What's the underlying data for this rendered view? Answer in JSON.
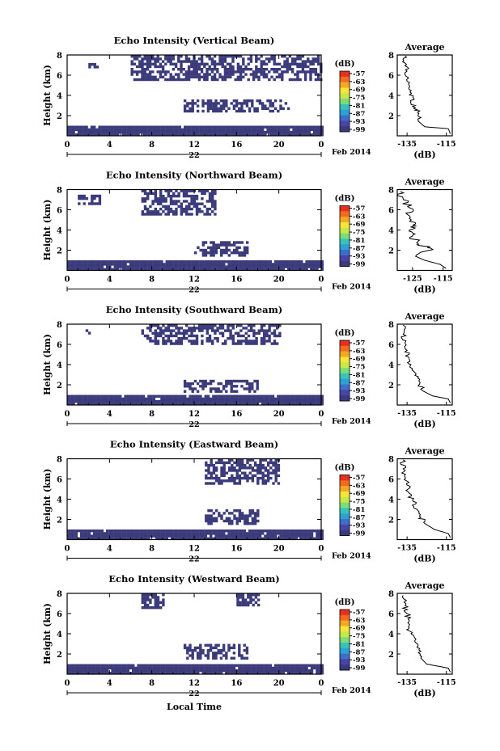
{
  "global": {
    "xlabel": "Local Time",
    "date_label": "22",
    "month_year": "Feb 2014",
    "colorbar_unit": "(dB)",
    "colorbar_ticks": [
      "-57",
      "-63",
      "-69",
      "-75",
      "-81",
      "-87",
      "-93",
      "-99"
    ],
    "colorbar_colors": [
      "#e8301e",
      "#f26b1f",
      "#f5a623",
      "#f7e53b",
      "#c8e84a",
      "#7ddc7a",
      "#38c2b8",
      "#2fa0d6",
      "#3b6fc8",
      "#4a43a8",
      "#3a3a7e"
    ],
    "data_color": "#3b3b7c",
    "x_ticks": [
      "0",
      "4",
      "8",
      "12",
      "16",
      "20",
      "0"
    ],
    "y_ticks": [
      "2",
      "4",
      "6",
      "8"
    ],
    "ylabel": "Height (km)",
    "avg_title": "Average",
    "avg_xlabel": "(dB)"
  },
  "chart_data": [
    {
      "type": "heatmap",
      "title": "Echo Intensity (Vertical Beam)",
      "xlabel": "Local Time",
      "ylabel": "Height (km)",
      "xlim": [
        0,
        24
      ],
      "ylim": [
        0,
        8
      ],
      "x_ticks": [
        "0",
        "4",
        "8",
        "12",
        "16",
        "20",
        "0"
      ],
      "y_ticks": [
        "2",
        "4",
        "6",
        "8"
      ],
      "blocks": [
        {
          "x": [
            0,
            24
          ],
          "y": [
            0.2,
            1.0
          ],
          "level": -99
        },
        {
          "x": [
            11,
            21
          ],
          "y": [
            2.5,
            3.6
          ],
          "level": -99
        },
        {
          "x": [
            6,
            24
          ],
          "y": [
            5.5,
            8.0
          ],
          "level": -99
        },
        {
          "x": [
            2,
            3
          ],
          "y": [
            6.8,
            7.2
          ],
          "level": -99
        }
      ],
      "average": {
        "title": "Average",
        "xlabel": "(dB)",
        "x_ticks": [
          "-135",
          "-115"
        ],
        "xlim": [
          -140,
          -112
        ],
        "y_ticks": [
          "2",
          "4",
          "6",
          "8"
        ],
        "ylim": [
          0,
          8
        ],
        "profile": [
          [
            -113,
            0.2
          ],
          [
            -114,
            0.7
          ],
          [
            -126,
            0.9
          ],
          [
            -129,
            1.4
          ],
          [
            -129,
            2.2
          ],
          [
            -130,
            2.6
          ],
          [
            -133,
            3.2
          ],
          [
            -132,
            3.8
          ],
          [
            -134,
            4.6
          ],
          [
            -135,
            5.4
          ],
          [
            -135,
            6.4
          ],
          [
            -136,
            7.2
          ],
          [
            -136,
            7.9
          ]
        ]
      }
    },
    {
      "type": "heatmap",
      "title": "Echo Intensity (Northward Beam)",
      "xlabel": "Local Time",
      "ylabel": "Height (km)",
      "xlim": [
        0,
        24
      ],
      "ylim": [
        0,
        8
      ],
      "x_ticks": [
        "0",
        "4",
        "8",
        "12",
        "16",
        "20",
        "0"
      ],
      "y_ticks": [
        "2",
        "4",
        "6",
        "8"
      ],
      "blocks": [
        {
          "x": [
            0,
            24
          ],
          "y": [
            0.2,
            1.0
          ],
          "level": -99
        },
        {
          "x": [
            12,
            17
          ],
          "y": [
            1.5,
            2.9
          ],
          "level": -99
        },
        {
          "x": [
            7,
            14
          ],
          "y": [
            5.6,
            8.0
          ],
          "level": -99
        },
        {
          "x": [
            1,
            3
          ],
          "y": [
            6.5,
            7.5
          ],
          "level": -99
        }
      ],
      "average": {
        "title": "Average",
        "xlabel": "(dB)",
        "x_ticks": [
          "-125",
          "-115"
        ],
        "xlim": [
          -130,
          -112
        ],
        "y_ticks": [
          "2",
          "4",
          "6",
          "8"
        ],
        "ylim": [
          0,
          8
        ],
        "profile": [
          [
            -114,
            0.2
          ],
          [
            -116,
            0.6
          ],
          [
            -121,
            1.0
          ],
          [
            -124,
            1.4
          ],
          [
            -119,
            2.2
          ],
          [
            -123,
            2.6
          ],
          [
            -125,
            3.4
          ],
          [
            -126,
            4.0
          ],
          [
            -124,
            4.6
          ],
          [
            -126,
            5.4
          ],
          [
            -126,
            6.2
          ],
          [
            -128,
            7.0
          ],
          [
            -129,
            7.8
          ]
        ]
      }
    },
    {
      "type": "heatmap",
      "title": "Echo Intensity (Southward Beam)",
      "xlabel": "Local Time",
      "ylabel": "Height (km)",
      "xlim": [
        0,
        24
      ],
      "ylim": [
        0,
        8
      ],
      "x_ticks": [
        "0",
        "4",
        "8",
        "12",
        "16",
        "20",
        "0"
      ],
      "y_ticks": [
        "2",
        "4",
        "6",
        "8"
      ],
      "blocks": [
        {
          "x": [
            0,
            24
          ],
          "y": [
            0.2,
            1.0
          ],
          "level": -99
        },
        {
          "x": [
            11,
            18
          ],
          "y": [
            1.4,
            2.5
          ],
          "level": -99
        },
        {
          "x": [
            7,
            20
          ],
          "y": [
            6.0,
            8.0
          ],
          "level": -99
        },
        {
          "x": [
            1,
            2
          ],
          "y": [
            7.0,
            7.5
          ],
          "level": -99
        }
      ],
      "average": {
        "title": "Average",
        "xlabel": "(dB)",
        "x_ticks": [
          "-135",
          "-115"
        ],
        "xlim": [
          -140,
          -112
        ],
        "y_ticks": [
          "2",
          "4",
          "6",
          "8"
        ],
        "ylim": [
          0,
          8
        ],
        "profile": [
          [
            -113,
            0.2
          ],
          [
            -114,
            0.6
          ],
          [
            -122,
            0.9
          ],
          [
            -127,
            1.4
          ],
          [
            -129,
            2.4
          ],
          [
            -131,
            3.2
          ],
          [
            -133,
            4.0
          ],
          [
            -134,
            4.6
          ],
          [
            -135,
            5.4
          ],
          [
            -136,
            6.2
          ],
          [
            -137,
            7.0
          ],
          [
            -137,
            7.9
          ]
        ]
      }
    },
    {
      "type": "heatmap",
      "title": "Echo Intensity (Eastward Beam)",
      "xlabel": "Local Time",
      "ylabel": "Height (km)",
      "xlim": [
        0,
        24
      ],
      "ylim": [
        0,
        8
      ],
      "x_ticks": [
        "0",
        "4",
        "8",
        "12",
        "16",
        "20",
        "0"
      ],
      "y_ticks": [
        "2",
        "4",
        "6",
        "8"
      ],
      "blocks": [
        {
          "x": [
            0,
            24
          ],
          "y": [
            0.2,
            1.0
          ],
          "level": -99
        },
        {
          "x": [
            13,
            18
          ],
          "y": [
            1.7,
            3.0
          ],
          "level": -99
        },
        {
          "x": [
            13,
            20
          ],
          "y": [
            5.5,
            8.0
          ],
          "level": -99
        }
      ],
      "average": {
        "title": "Average",
        "xlabel": "(dB)",
        "x_ticks": [
          "-135",
          "-115"
        ],
        "xlim": [
          -140,
          -112
        ],
        "y_ticks": [
          "2",
          "4",
          "6",
          "8"
        ],
        "ylim": [
          0,
          8
        ],
        "profile": [
          [
            -113,
            0.2
          ],
          [
            -114,
            0.6
          ],
          [
            -121,
            1.0
          ],
          [
            -126,
            1.6
          ],
          [
            -128,
            2.2
          ],
          [
            -130,
            3.0
          ],
          [
            -132,
            3.8
          ],
          [
            -134,
            4.6
          ],
          [
            -135,
            5.4
          ],
          [
            -136,
            6.2
          ],
          [
            -137,
            7.0
          ],
          [
            -137,
            7.9
          ]
        ]
      }
    },
    {
      "type": "heatmap",
      "title": "Echo Intensity (Westward Beam)",
      "xlabel": "Local Time",
      "ylabel": "Height (km)",
      "xlim": [
        0,
        24
      ],
      "ylim": [
        0,
        8
      ],
      "x_ticks": [
        "0",
        "4",
        "8",
        "12",
        "16",
        "20",
        "0"
      ],
      "y_ticks": [
        "2",
        "4",
        "6",
        "8"
      ],
      "blocks": [
        {
          "x": [
            0,
            24
          ],
          "y": [
            0.2,
            1.0
          ],
          "level": -99
        },
        {
          "x": [
            11,
            17
          ],
          "y": [
            1.7,
            3.0
          ],
          "level": -99
        },
        {
          "x": [
            16,
            18
          ],
          "y": [
            6.8,
            8.0
          ],
          "level": -99
        },
        {
          "x": [
            7,
            9
          ],
          "y": [
            6.5,
            8.0
          ],
          "level": -99
        }
      ],
      "average": {
        "title": "Average",
        "xlabel": "(dB)",
        "x_ticks": [
          "-135",
          "-115"
        ],
        "xlim": [
          -140,
          -112
        ],
        "y_ticks": [
          "2",
          "4",
          "6",
          "8"
        ],
        "ylim": [
          0,
          8
        ],
        "profile": [
          [
            -113,
            0.2
          ],
          [
            -114,
            0.6
          ],
          [
            -125,
            1.0
          ],
          [
            -128,
            1.6
          ],
          [
            -129,
            2.4
          ],
          [
            -131,
            3.2
          ],
          [
            -133,
            4.0
          ],
          [
            -134,
            4.6
          ],
          [
            -134,
            5.2
          ],
          [
            -135,
            6.0
          ],
          [
            -136,
            6.8
          ],
          [
            -137,
            7.8
          ]
        ]
      }
    }
  ]
}
